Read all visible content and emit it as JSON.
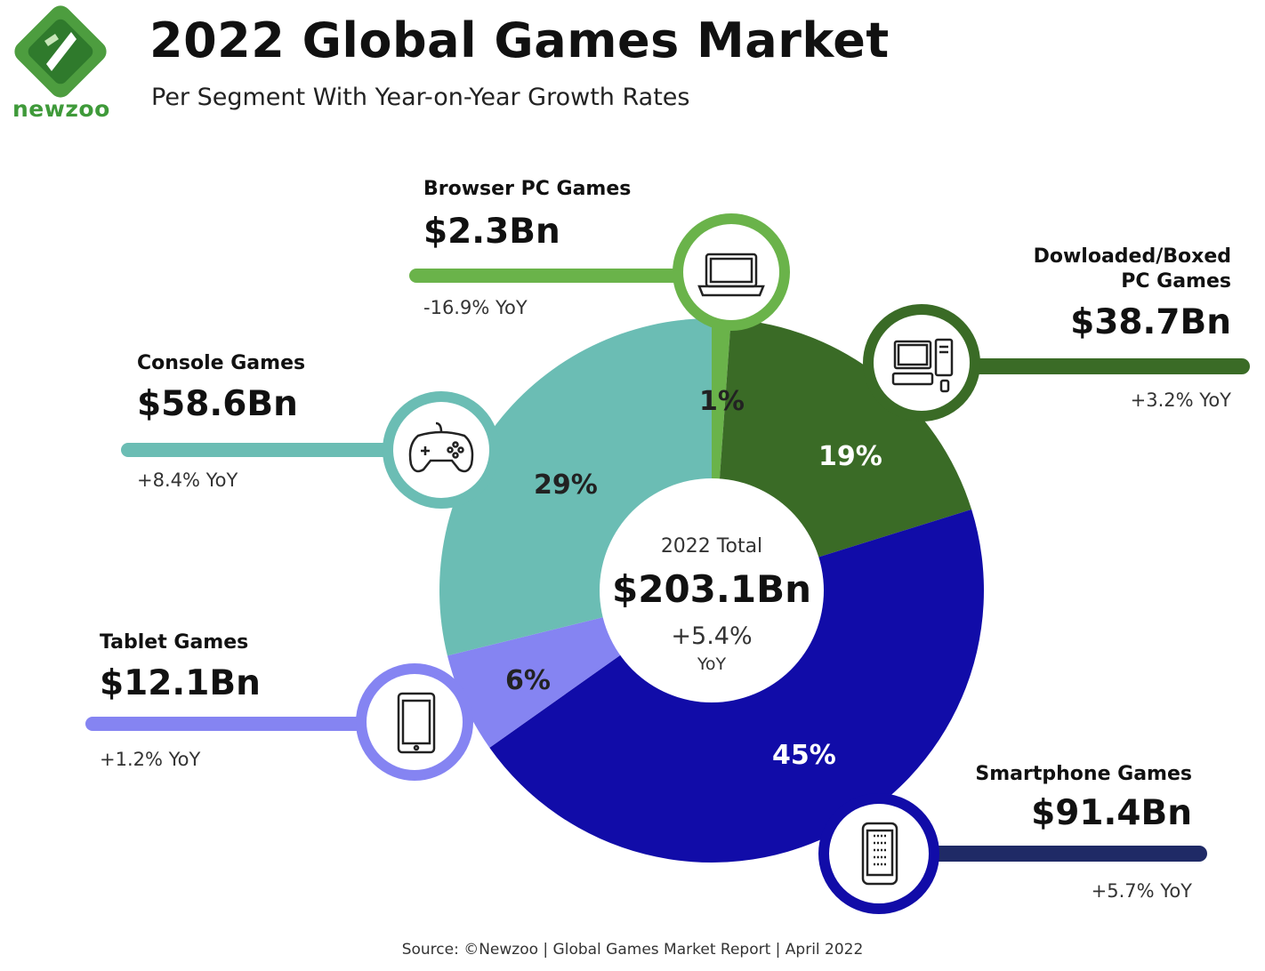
{
  "header": {
    "logo_text": "newzoo",
    "title": "2022 Global Games Market",
    "subtitle": "Per Segment With Year-on-Year Growth Rates"
  },
  "center": {
    "label": "2022 Total",
    "total": "$203.1Bn",
    "yoy_value": "+5.4%",
    "yoy_unit": "YoY"
  },
  "colors": {
    "browser": "#6ab34a",
    "downloaded": "#3a6b26",
    "smartphone": "#110ca8",
    "tablet": "#8584f2",
    "console": "#6bbdb4",
    "smartphone_bar": "#1f2a66"
  },
  "chart_data": {
    "type": "pie",
    "title": "2022 Global Games Market",
    "subtitle": "Per Segment With Year-on-Year Growth Rates",
    "unit": "Bn USD",
    "total": 203.1,
    "total_yoy_percent": 5.4,
    "series": [
      {
        "name": "Browser PC Games",
        "value": 2.3,
        "value_label": "$2.3Bn",
        "share": 1,
        "share_label": "1%",
        "yoy": "-16.9% YoY",
        "icon": "laptop-icon",
        "color": "#6ab34a"
      },
      {
        "name": "Dowloaded/Boxed PC Games",
        "name_line1": "Dowloaded/Boxed",
        "name_line2": "PC Games",
        "value": 38.7,
        "value_label": "$38.7Bn",
        "share": 19,
        "share_label": "19%",
        "yoy": "+3.2% YoY",
        "icon": "desktop-pc-icon",
        "color": "#3a6b26"
      },
      {
        "name": "Smartphone Games",
        "value": 91.4,
        "value_label": "$91.4Bn",
        "share": 45,
        "share_label": "45%",
        "yoy": "+5.7% YoY",
        "icon": "smartphone-icon",
        "color": "#110ca8"
      },
      {
        "name": "Tablet Games",
        "value": 12.1,
        "value_label": "$12.1Bn",
        "share": 6,
        "share_label": "6%",
        "yoy": "+1.2% YoY",
        "icon": "tablet-icon",
        "color": "#8584f2"
      },
      {
        "name": "Console Games",
        "value": 58.6,
        "value_label": "$58.6Bn",
        "share": 29,
        "share_label": "29%",
        "yoy": "+8.4% YoY",
        "icon": "gamepad-icon",
        "color": "#6bbdb4"
      }
    ]
  },
  "source": "Source: ©Newzoo | Global Games Market Report | April 2022"
}
